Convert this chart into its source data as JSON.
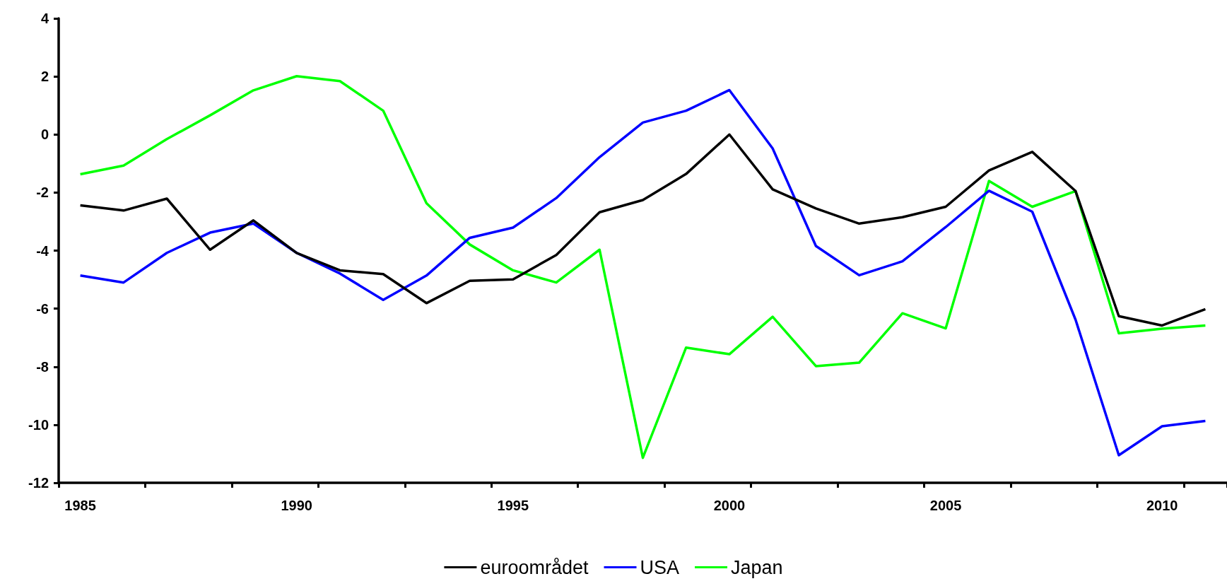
{
  "chart_data": {
    "type": "line",
    "categories": [
      "1985",
      null,
      null,
      null,
      null,
      "1990",
      null,
      null,
      null,
      null,
      "1995",
      null,
      null,
      null,
      null,
      "2000",
      null,
      null,
      null,
      null,
      "2005",
      null,
      null,
      null,
      null,
      "2010",
      null
    ],
    "series": [
      {
        "name": "euroområdet",
        "color": "#000000",
        "values": [
          -2.44,
          -2.62,
          -2.21,
          -3.97,
          -2.96,
          -4.08,
          -4.68,
          -4.81,
          -5.81,
          -5.04,
          -4.99,
          -4.15,
          -2.68,
          -2.26,
          -1.36,
          0.0,
          -1.89,
          -2.55,
          -3.07,
          -2.85,
          -2.49,
          -1.24,
          -0.6,
          -1.95,
          -6.26,
          -6.58,
          -6.02
        ]
      },
      {
        "name": "USA",
        "color": "#0000ff",
        "values": [
          -4.86,
          -5.1,
          -4.08,
          -3.38,
          -3.07,
          -4.08,
          -4.79,
          -5.7,
          -4.86,
          -3.56,
          -3.21,
          -2.19,
          -0.78,
          0.41,
          0.82,
          1.53,
          -0.48,
          -3.84,
          -4.85,
          -4.37,
          -3.19,
          -1.94,
          -2.66,
          -6.38,
          -11.05,
          -10.05,
          -9.87
        ]
      },
      {
        "name": "Japan",
        "color": "#00ff00",
        "values": [
          -1.37,
          -1.07,
          -0.16,
          0.66,
          1.52,
          2.01,
          1.84,
          0.82,
          -2.37,
          -3.79,
          -4.68,
          -5.1,
          -3.97,
          -11.14,
          -7.34,
          -7.57,
          -6.28,
          -7.98,
          -7.86,
          -6.16,
          -6.68,
          -1.6,
          -2.49,
          -1.95,
          -6.85,
          -6.69,
          -6.58
        ]
      }
    ],
    "ylim": [
      -12,
      4
    ],
    "yticks": [
      -12,
      -10,
      -8,
      -6,
      -4,
      -2,
      0,
      2,
      4
    ],
    "grid": false,
    "legend": "bottom",
    "marker": "none",
    "line_style": "solid"
  }
}
